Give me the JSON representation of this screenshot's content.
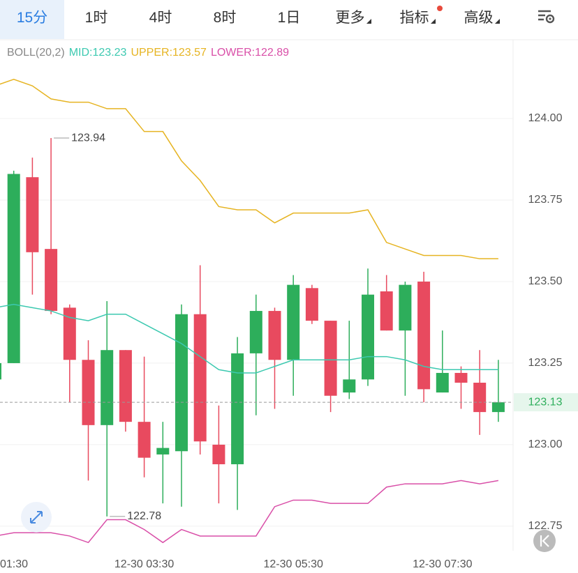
{
  "tabs": [
    "15分",
    "1时",
    "4时",
    "8时",
    "1日",
    "更多",
    "指标",
    "高级"
  ],
  "chart_data": {
    "type": "candlestick",
    "indicator": {
      "name": "BOLL(20,2)",
      "mid": "MID:123.23",
      "upper": "UPPER:123.57",
      "lower": "LOWER:122.89"
    },
    "categories": [
      "01:30",
      null,
      null,
      null,
      null,
      null,
      null,
      null,
      "12-30 03:30",
      null,
      null,
      null,
      null,
      null,
      null,
      null,
      "12-30 05:30",
      null,
      null,
      null,
      null,
      null,
      null,
      null,
      "12-30 07:30",
      null,
      null,
      null
    ],
    "open": [
      123.2,
      123.25,
      123.82,
      123.6,
      123.42,
      123.26,
      123.06,
      123.29,
      123.07,
      122.97,
      122.98,
      123.4,
      123.0,
      122.94,
      123.28,
      123.41,
      123.26,
      123.48,
      123.38,
      123.16,
      123.2,
      123.47,
      123.35,
      123.5,
      123.16,
      123.22,
      123.19,
      123.1
    ],
    "high": [
      123.25,
      123.84,
      123.88,
      123.94,
      123.43,
      123.32,
      123.44,
      123.29,
      123.27,
      123.07,
      123.43,
      123.55,
      123.12,
      123.33,
      123.46,
      123.42,
      123.52,
      123.49,
      123.38,
      123.38,
      123.54,
      123.52,
      123.5,
      123.53,
      123.35,
      123.24,
      123.29,
      123.26
    ],
    "low": [
      123.2,
      123.25,
      123.46,
      123.4,
      123.13,
      122.89,
      122.78,
      123.04,
      122.9,
      122.82,
      122.81,
      122.97,
      122.82,
      122.8,
      123.09,
      123.11,
      123.15,
      123.37,
      123.1,
      123.14,
      123.18,
      123.35,
      123.15,
      123.13,
      123.16,
      123.11,
      123.03,
      123.07
    ],
    "close": [
      123.25,
      123.83,
      123.59,
      123.41,
      123.26,
      123.06,
      123.29,
      123.07,
      122.96,
      122.99,
      123.4,
      123.01,
      122.94,
      123.28,
      123.41,
      123.26,
      123.49,
      123.38,
      123.15,
      123.2,
      123.46,
      123.35,
      123.49,
      123.17,
      123.22,
      123.19,
      123.1,
      123.13
    ],
    "up_color": "#2dae5b",
    "down_color": "#e84a5f",
    "lines": [
      {
        "name": "UPPER",
        "color": "#e6b422",
        "values": [
          124.1,
          124.12,
          124.1,
          124.06,
          124.05,
          124.05,
          124.03,
          124.03,
          123.96,
          123.96,
          123.87,
          123.81,
          123.73,
          123.72,
          123.72,
          123.68,
          123.71,
          123.71,
          123.71,
          123.71,
          123.72,
          123.62,
          123.6,
          123.58,
          123.58,
          123.58,
          123.57,
          123.57
        ]
      },
      {
        "name": "MID",
        "color": "#3cc9b0",
        "values": [
          123.42,
          123.43,
          123.42,
          123.41,
          123.39,
          123.38,
          123.4,
          123.4,
          123.37,
          123.34,
          123.31,
          123.27,
          123.23,
          123.22,
          123.22,
          123.24,
          123.26,
          123.26,
          123.26,
          123.26,
          123.27,
          123.27,
          123.26,
          123.24,
          123.23,
          123.23,
          123.23,
          123.23
        ]
      },
      {
        "name": "LOWER",
        "color": "#d94fa8",
        "values": [
          122.72,
          122.73,
          122.73,
          122.73,
          122.72,
          122.7,
          122.77,
          122.77,
          122.74,
          122.7,
          122.74,
          122.72,
          122.72,
          122.72,
          122.72,
          122.81,
          122.83,
          122.83,
          122.82,
          122.82,
          122.82,
          122.87,
          122.88,
          122.88,
          122.88,
          122.89,
          122.88,
          122.89
        ]
      }
    ],
    "max_label": {
      "index": 3,
      "value": 123.94,
      "label": "123.94"
    },
    "min_label": {
      "index": 6,
      "value": 122.78,
      "label": "122.78"
    },
    "last_price": {
      "value": 123.13,
      "label": "123.13"
    },
    "ylim": [
      122.675,
      124.235
    ],
    "yticks": [
      {
        "value": 124,
        "label": "124.00"
      },
      {
        "value": 123.75,
        "label": "123.75"
      },
      {
        "value": 123.5,
        "label": "123.50"
      },
      {
        "value": 123.25,
        "label": "123.25"
      },
      {
        "value": 123,
        "label": "123.00"
      },
      {
        "value": 122.75,
        "label": "122.75"
      }
    ],
    "grid": true
  }
}
